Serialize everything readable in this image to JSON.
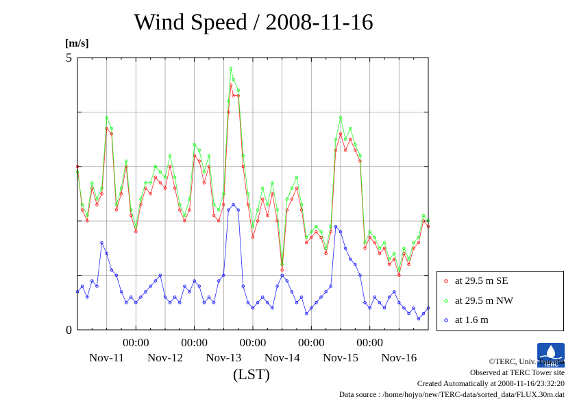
{
  "chart_data": {
    "type": "line",
    "title": "Wind Speed / 2008-11-16",
    "ylabel": "[m/s]",
    "xlabel": "(LST)",
    "ylim": [
      0,
      5
    ],
    "xlim": [
      0,
      144
    ],
    "y_ticks": [
      "0",
      "5"
    ],
    "x_time_labels": [
      "00:00",
      "00:00",
      "00:00",
      "00:00",
      "00:00"
    ],
    "x_date_labels": [
      "Nov-11",
      "Nov-12",
      "Nov-13",
      "Nov-14",
      "Nov-15",
      "Nov-16"
    ],
    "x_unit_hours": true,
    "grid": true,
    "legend_placement": "lower-right-outside",
    "series": [
      {
        "name": "at 29.5 m SE",
        "color": "#ff0000",
        "points": [
          [
            0,
            3.0
          ],
          [
            2,
            2.2
          ],
          [
            4,
            2.0
          ],
          [
            6,
            2.6
          ],
          [
            8,
            2.3
          ],
          [
            10,
            2.5
          ],
          [
            12,
            3.7
          ],
          [
            14,
            3.6
          ],
          [
            16,
            2.2
          ],
          [
            18,
            2.5
          ],
          [
            20,
            3.0
          ],
          [
            22,
            2.1
          ],
          [
            24,
            1.8
          ],
          [
            26,
            2.3
          ],
          [
            28,
            2.6
          ],
          [
            30,
            2.5
          ],
          [
            32,
            2.8
          ],
          [
            34,
            2.7
          ],
          [
            36,
            2.6
          ],
          [
            38,
            3.0
          ],
          [
            40,
            2.6
          ],
          [
            42,
            2.2
          ],
          [
            44,
            2.0
          ],
          [
            46,
            2.2
          ],
          [
            48,
            3.2
          ],
          [
            50,
            3.1
          ],
          [
            52,
            2.7
          ],
          [
            54,
            3.0
          ],
          [
            56,
            2.1
          ],
          [
            58,
            2.0
          ],
          [
            60,
            2.3
          ],
          [
            62,
            4.0
          ],
          [
            63,
            4.5
          ],
          [
            64,
            4.3
          ],
          [
            66,
            4.3
          ],
          [
            68,
            3.0
          ],
          [
            70,
            2.3
          ],
          [
            72,
            1.7
          ],
          [
            74,
            2.0
          ],
          [
            76,
            2.4
          ],
          [
            78,
            2.1
          ],
          [
            80,
            2.5
          ],
          [
            82,
            2.0
          ],
          [
            84,
            1.1
          ],
          [
            86,
            2.2
          ],
          [
            88,
            2.4
          ],
          [
            90,
            2.6
          ],
          [
            92,
            2.2
          ],
          [
            94,
            1.6
          ],
          [
            96,
            1.7
          ],
          [
            98,
            1.8
          ],
          [
            100,
            1.7
          ],
          [
            102,
            1.4
          ],
          [
            104,
            1.8
          ],
          [
            106,
            3.3
          ],
          [
            108,
            3.6
          ],
          [
            110,
            3.3
          ],
          [
            112,
            3.5
          ],
          [
            114,
            3.3
          ],
          [
            116,
            3.1
          ],
          [
            118,
            1.5
          ],
          [
            120,
            1.7
          ],
          [
            122,
            1.6
          ],
          [
            124,
            1.4
          ],
          [
            126,
            1.5
          ],
          [
            128,
            1.2
          ],
          [
            130,
            1.3
          ],
          [
            132,
            1.0
          ],
          [
            134,
            1.4
          ],
          [
            136,
            1.2
          ],
          [
            138,
            1.5
          ],
          [
            140,
            1.6
          ],
          [
            142,
            2.0
          ],
          [
            144,
            1.9
          ]
        ]
      },
      {
        "name": "at 29.5 m NW",
        "color": "#00ff00",
        "points": [
          [
            0,
            2.9
          ],
          [
            2,
            2.3
          ],
          [
            4,
            2.1
          ],
          [
            6,
            2.7
          ],
          [
            8,
            2.4
          ],
          [
            10,
            2.6
          ],
          [
            12,
            3.9
          ],
          [
            14,
            3.7
          ],
          [
            16,
            2.3
          ],
          [
            18,
            2.6
          ],
          [
            20,
            3.1
          ],
          [
            22,
            2.2
          ],
          [
            24,
            1.9
          ],
          [
            26,
            2.4
          ],
          [
            28,
            2.7
          ],
          [
            30,
            2.7
          ],
          [
            32,
            3.0
          ],
          [
            34,
            2.9
          ],
          [
            36,
            2.8
          ],
          [
            38,
            3.2
          ],
          [
            40,
            2.8
          ],
          [
            42,
            2.3
          ],
          [
            44,
            2.1
          ],
          [
            46,
            2.4
          ],
          [
            48,
            3.4
          ],
          [
            50,
            3.3
          ],
          [
            52,
            2.9
          ],
          [
            54,
            3.2
          ],
          [
            56,
            2.3
          ],
          [
            58,
            2.2
          ],
          [
            60,
            2.5
          ],
          [
            62,
            4.2
          ],
          [
            63,
            4.8
          ],
          [
            64,
            4.6
          ],
          [
            66,
            4.4
          ],
          [
            68,
            3.2
          ],
          [
            70,
            2.5
          ],
          [
            72,
            1.9
          ],
          [
            74,
            2.2
          ],
          [
            76,
            2.6
          ],
          [
            78,
            2.3
          ],
          [
            80,
            2.7
          ],
          [
            82,
            2.2
          ],
          [
            84,
            1.2
          ],
          [
            86,
            2.4
          ],
          [
            88,
            2.6
          ],
          [
            90,
            2.8
          ],
          [
            92,
            2.3
          ],
          [
            94,
            1.7
          ],
          [
            96,
            1.8
          ],
          [
            98,
            1.9
          ],
          [
            100,
            1.8
          ],
          [
            102,
            1.5
          ],
          [
            104,
            1.9
          ],
          [
            106,
            3.5
          ],
          [
            108,
            3.9
          ],
          [
            110,
            3.5
          ],
          [
            112,
            3.7
          ],
          [
            114,
            3.4
          ],
          [
            116,
            3.2
          ],
          [
            118,
            1.6
          ],
          [
            120,
            1.8
          ],
          [
            122,
            1.7
          ],
          [
            124,
            1.5
          ],
          [
            126,
            1.6
          ],
          [
            128,
            1.3
          ],
          [
            130,
            1.4
          ],
          [
            132,
            1.1
          ],
          [
            134,
            1.5
          ],
          [
            136,
            1.3
          ],
          [
            138,
            1.6
          ],
          [
            140,
            1.7
          ],
          [
            142,
            2.1
          ],
          [
            144,
            2.0
          ]
        ]
      },
      {
        "name": "at 1.6 m",
        "color": "#0000ff",
        "points": [
          [
            0,
            0.7
          ],
          [
            2,
            0.8
          ],
          [
            4,
            0.6
          ],
          [
            6,
            0.9
          ],
          [
            8,
            0.8
          ],
          [
            10,
            1.6
          ],
          [
            12,
            1.4
          ],
          [
            14,
            1.1
          ],
          [
            16,
            1.0
          ],
          [
            18,
            0.7
          ],
          [
            20,
            0.5
          ],
          [
            22,
            0.6
          ],
          [
            24,
            0.5
          ],
          [
            26,
            0.6
          ],
          [
            28,
            0.7
          ],
          [
            30,
            0.8
          ],
          [
            32,
            0.9
          ],
          [
            34,
            1.0
          ],
          [
            36,
            0.6
          ],
          [
            38,
            0.5
          ],
          [
            40,
            0.6
          ],
          [
            42,
            0.5
          ],
          [
            44,
            0.8
          ],
          [
            46,
            0.7
          ],
          [
            48,
            0.9
          ],
          [
            50,
            0.8
          ],
          [
            52,
            0.5
          ],
          [
            54,
            0.6
          ],
          [
            56,
            0.5
          ],
          [
            58,
            0.9
          ],
          [
            60,
            1.0
          ],
          [
            62,
            2.2
          ],
          [
            64,
            2.3
          ],
          [
            66,
            2.2
          ],
          [
            68,
            0.8
          ],
          [
            70,
            0.5
          ],
          [
            72,
            0.4
          ],
          [
            74,
            0.5
          ],
          [
            76,
            0.6
          ],
          [
            78,
            0.5
          ],
          [
            80,
            0.4
          ],
          [
            82,
            0.8
          ],
          [
            84,
            1.0
          ],
          [
            86,
            0.9
          ],
          [
            88,
            0.7
          ],
          [
            90,
            0.5
          ],
          [
            92,
            0.6
          ],
          [
            94,
            0.3
          ],
          [
            96,
            0.4
          ],
          [
            98,
            0.5
          ],
          [
            100,
            0.6
          ],
          [
            102,
            0.7
          ],
          [
            104,
            0.8
          ],
          [
            106,
            1.9
          ],
          [
            108,
            1.8
          ],
          [
            110,
            1.5
          ],
          [
            112,
            1.3
          ],
          [
            114,
            1.2
          ],
          [
            116,
            1.0
          ],
          [
            118,
            0.5
          ],
          [
            120,
            0.4
          ],
          [
            122,
            0.6
          ],
          [
            124,
            0.5
          ],
          [
            126,
            0.4
          ],
          [
            128,
            0.6
          ],
          [
            130,
            0.7
          ],
          [
            132,
            0.5
          ],
          [
            134,
            0.4
          ],
          [
            136,
            0.3
          ],
          [
            138,
            0.4
          ],
          [
            140,
            0.2
          ],
          [
            142,
            0.3
          ],
          [
            144,
            0.4
          ]
        ]
      }
    ]
  },
  "credits": {
    "copyright": "©TERC, Univ. Tsukuba",
    "observed": "Observed at TERC Tower site",
    "created": "Created Automatically at 2008-11-16/23:32:20",
    "source": "Data source : /home/hojyo/new/TERC-data/sorted_data/FLUX.30m.dat"
  },
  "logo": {
    "text": "TERC",
    "color": "#1a55b5"
  }
}
